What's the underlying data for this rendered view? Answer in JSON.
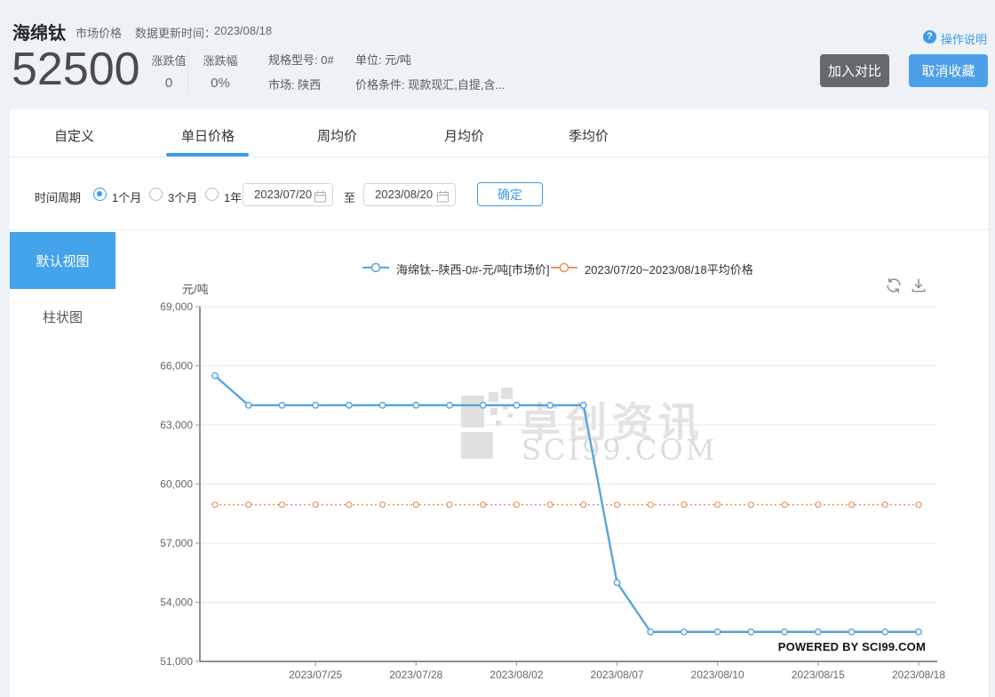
{
  "header": {
    "product": "海绵钛",
    "category": "市场价格",
    "update_label": "数据更新时间：",
    "update_date": "2023/08/18",
    "price": "52500",
    "change_value_label": "涨跌值",
    "change_value": "0",
    "change_pct_label": "涨跌幅",
    "change_pct": "0%",
    "spec_line1": "规格型号: 0#",
    "spec_line2": "市场: 陕西",
    "unit_line1": "单位: 元/吨",
    "unit_line2": "价格条件: 现款现汇,自提,含...",
    "help_label": "操作说明",
    "compare_button": "加入对比",
    "unfavorite_button": "取消收藏"
  },
  "tabs": {
    "items": [
      {
        "label": "自定义",
        "active": false
      },
      {
        "label": "单日价格",
        "active": true
      },
      {
        "label": "周均价",
        "active": false
      },
      {
        "label": "月均价",
        "active": false
      },
      {
        "label": "季均价",
        "active": false
      }
    ]
  },
  "filter": {
    "label": "时间周期",
    "options": [
      "1个月",
      "3个月",
      "1年"
    ],
    "selected_option": "1个月",
    "start_date": "2023/07/20",
    "to_label": "至",
    "end_date": "2023/08/20",
    "confirm_button": "确定"
  },
  "sidebar": {
    "items": [
      {
        "label": "默认视图",
        "active": true
      },
      {
        "label": "柱状图",
        "active": false
      }
    ]
  },
  "icons": {
    "help_glyph": "?"
  },
  "colors": {
    "accent_blue": "#3d9be9",
    "favorite_button_blue": "#4da0e8",
    "compare_button_gray": "#65696e",
    "sidebar_blue": "#43a3eb",
    "series_blue": "#58a5da",
    "series_orange": "#e8945f"
  },
  "chart_data": {
    "type": "line",
    "title": "",
    "ylabel": "元/吨",
    "ylim": [
      51000,
      69000
    ],
    "y_tick_step": 3000,
    "y_tick_labels": [
      "69,000",
      "66,000",
      "63,000",
      "60,000",
      "57,000",
      "54,000",
      "51,000"
    ],
    "categories": [
      "2023/07/20",
      "2023/07/21",
      "2023/07/24",
      "2023/07/25",
      "2023/07/26",
      "2023/07/27",
      "2023/07/28",
      "2023/07/31",
      "2023/08/01",
      "2023/08/02",
      "2023/08/03",
      "2023/08/04",
      "2023/08/07",
      "2023/08/08",
      "2023/08/09",
      "2023/08/10",
      "2023/08/11",
      "2023/08/14",
      "2023/08/15",
      "2023/08/16",
      "2023/08/17",
      "2023/08/18"
    ],
    "x_tick_labels": [
      "2023/07/25",
      "2023/07/28",
      "2023/08/02",
      "2023/08/07",
      "2023/08/10",
      "2023/08/15",
      "2023/08/18"
    ],
    "grid": true,
    "legend_position": "top",
    "series": [
      {
        "name": "海绵钛--陕西-0#-元/吨[市场价]",
        "color": "#58a5da",
        "line_style": "solid",
        "values": [
          65500,
          64000,
          64000,
          64000,
          64000,
          64000,
          64000,
          64000,
          64000,
          64000,
          64000,
          64000,
          55000,
          52500,
          52500,
          52500,
          52500,
          52500,
          52500,
          52500,
          52500,
          52500
        ]
      },
      {
        "name": "2023/07/20~2023/08/18平均价格",
        "color": "#e8945f",
        "line_style": "dotted",
        "constant_value": 58954.5
      }
    ],
    "watermark": {
      "line1": "卓创资讯",
      "line2": "SCI99.COM"
    },
    "powered_by": "POWERED BY SCI99.COM"
  }
}
